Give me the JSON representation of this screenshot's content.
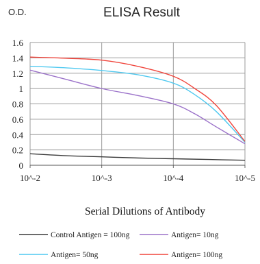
{
  "chart_data": {
    "type": "line",
    "title": "ELISA Result",
    "ylabel": "O.D.",
    "xlabel": "Serial Dilutions of Antibody",
    "categories": [
      "10^-2",
      "10^-3",
      "10^-4",
      "10^-5"
    ],
    "y_ticks": [
      "1.6",
      "1.4",
      "1.2",
      "1",
      "0.8",
      "0.6",
      "0.4",
      "0.2",
      "0"
    ],
    "ylim": [
      0,
      1.6
    ],
    "grid": true,
    "legend_position": "bottom",
    "series": [
      {
        "name": "Control Antigen = 100ng",
        "color": "#3a3a3a",
        "points": [
          [
            0,
            0.15
          ],
          [
            0.5,
            0.125
          ],
          [
            1,
            0.11
          ],
          [
            1.5,
            0.095
          ],
          [
            2,
            0.085
          ],
          [
            2.5,
            0.075
          ],
          [
            3,
            0.065
          ]
        ]
      },
      {
        "name": "Antigen= 10ng",
        "color": "#9b72c9",
        "points": [
          [
            0,
            1.24
          ],
          [
            0.5,
            1.12
          ],
          [
            1,
            1.0
          ],
          [
            1.5,
            0.91
          ],
          [
            2,
            0.8
          ],
          [
            2.3,
            0.67
          ],
          [
            2.6,
            0.5
          ],
          [
            3,
            0.28
          ]
        ]
      },
      {
        "name": "Antigen= 50ng",
        "color": "#4fc9f0",
        "points": [
          [
            0,
            1.29
          ],
          [
            0.5,
            1.27
          ],
          [
            1,
            1.235
          ],
          [
            1.5,
            1.18
          ],
          [
            2,
            1.07
          ],
          [
            2.3,
            0.92
          ],
          [
            2.6,
            0.7
          ],
          [
            3,
            0.3
          ]
        ]
      },
      {
        "name": "Antigen= 100ng",
        "color": "#f0453c",
        "points": [
          [
            0,
            1.41
          ],
          [
            0.5,
            1.395
          ],
          [
            1,
            1.37
          ],
          [
            1.5,
            1.29
          ],
          [
            2,
            1.16
          ],
          [
            2.3,
            1.0
          ],
          [
            2.6,
            0.78
          ],
          [
            3,
            0.31
          ]
        ]
      }
    ]
  }
}
